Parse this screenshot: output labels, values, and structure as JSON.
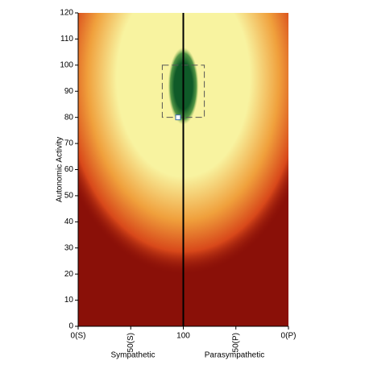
{
  "chart_data": {
    "type": "heatmap",
    "ylabel": "Autonomic Activity",
    "xlabels": [
      "Sympathetic",
      "Parasympathetic"
    ],
    "xlim": [
      0,
      200
    ],
    "xticks": [
      {
        "value": 0,
        "label": "0(S)"
      },
      {
        "value": 50,
        "label": "50(S)"
      },
      {
        "value": 100,
        "label": "100"
      },
      {
        "value": 150,
        "label": "50(P)"
      },
      {
        "value": 200,
        "label": "0(P)"
      }
    ],
    "ylim": [
      0,
      120
    ],
    "yticks": [
      0,
      10,
      20,
      30,
      40,
      50,
      60,
      70,
      80,
      90,
      100,
      110,
      120
    ],
    "divider": 100,
    "optimum": {
      "x": 100,
      "y": 92
    },
    "target": {
      "x": [
        80,
        120
      ],
      "y": [
        80,
        100
      ]
    },
    "point": {
      "x": 95,
      "y": 80
    },
    "colors": {
      "low": "#8a1008",
      "mid": "#f0a03c",
      "high": "#f8f3a0",
      "best": "#0f5a28"
    }
  }
}
